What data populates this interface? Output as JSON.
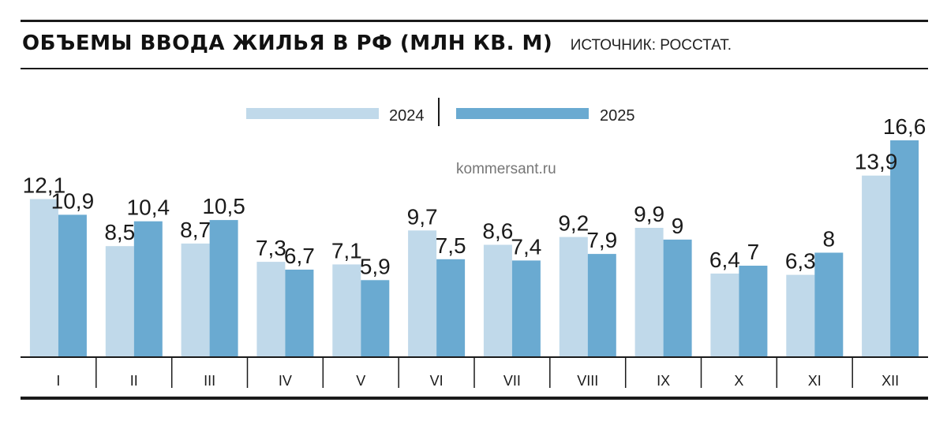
{
  "header": {
    "title": "ОБЪЕМЫ ВВОДА ЖИЛЬЯ В РФ (МЛН КВ. М)",
    "source": "ИСТОЧНИК: РОССТАТ."
  },
  "watermark": "kommersant.ru",
  "colors": {
    "series_2024": "#c0d9ea",
    "series_2025": "#6aaad1",
    "axis": "#1a1a1a"
  },
  "chart_data": {
    "type": "bar",
    "title": "ОБЪЕМЫ ВВОДА ЖИЛЬЯ В РФ (МЛН КВ. М)",
    "categories": [
      "I",
      "II",
      "III",
      "IV",
      "V",
      "VI",
      "VII",
      "VIII",
      "IX",
      "X",
      "XI",
      "XII"
    ],
    "series": [
      {
        "name": "2024",
        "values": [
          12.1,
          8.5,
          8.7,
          7.3,
          7.1,
          9.7,
          8.6,
          9.2,
          9.9,
          6.4,
          6.3,
          13.9
        ],
        "labels": [
          "12,1",
          "8,5",
          "8,7",
          "7,3",
          "7,1",
          "9,7",
          "8,6",
          "9,2",
          "9,9",
          "6,4",
          "6,3",
          "13,9"
        ]
      },
      {
        "name": "2025",
        "values": [
          10.9,
          10.4,
          10.5,
          6.7,
          5.9,
          7.5,
          7.4,
          7.9,
          9,
          7,
          8,
          16.6
        ],
        "labels": [
          "10,9",
          "10,4",
          "10,5",
          "6,7",
          "5,9",
          "7,5",
          "7,4",
          "7,9",
          "9",
          "7",
          "8",
          "16,6"
        ]
      }
    ],
    "xlabel": "",
    "ylabel": "",
    "ylim": [
      0,
      16.6
    ],
    "grid": false,
    "legend": "top-center"
  }
}
